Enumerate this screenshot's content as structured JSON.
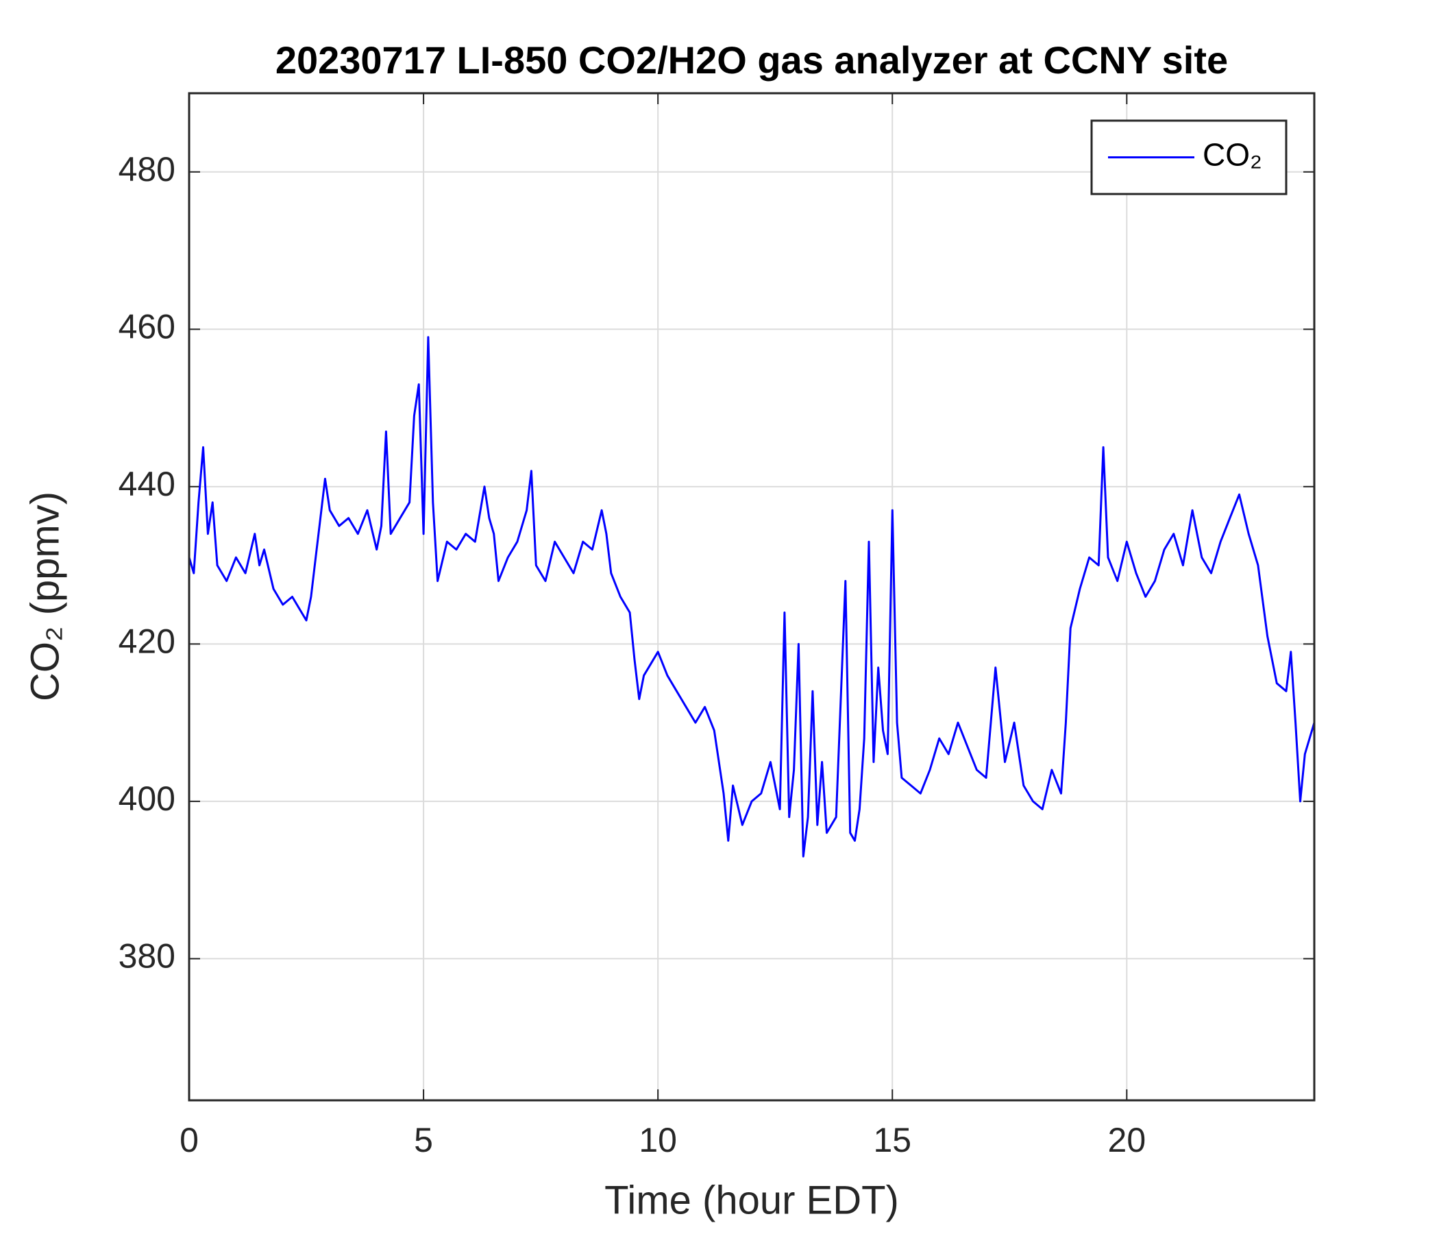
{
  "chart_data": {
    "type": "line",
    "title": "20230717 LI-850 CO2/H2O gas analyzer at CCNY site",
    "x_label": "Time (hour EDT)",
    "y_label": "CO₂ (ppmv)",
    "xlim": [
      0,
      24
    ],
    "xticks": [
      0,
      5,
      10,
      15,
      20
    ],
    "ylim": [
      362,
      490
    ],
    "yticks": [
      380,
      400,
      420,
      440,
      460,
      480
    ],
    "grid": true,
    "legend": "upper right",
    "x": [
      0,
      0.1,
      0.2,
      0.3,
      0.4,
      0.5,
      0.6,
      0.8,
      1.0,
      1.2,
      1.4,
      1.5,
      1.6,
      1.8,
      2.0,
      2.2,
      2.4,
      2.5,
      2.6,
      2.7,
      2.8,
      2.9,
      3.0,
      3.2,
      3.4,
      3.6,
      3.8,
      4.0,
      4.1,
      4.2,
      4.3,
      4.5,
      4.7,
      4.8,
      4.9,
      5.0,
      5.1,
      5.2,
      5.3,
      5.5,
      5.7,
      5.9,
      6.1,
      6.3,
      6.4,
      6.5,
      6.6,
      6.8,
      7.0,
      7.2,
      7.3,
      7.4,
      7.6,
      7.8,
      8.0,
      8.2,
      8.4,
      8.6,
      8.8,
      8.9,
      9.0,
      9.2,
      9.4,
      9.5,
      9.6,
      9.7,
      9.8,
      10.0,
      10.2,
      10.4,
      10.6,
      10.8,
      11.0,
      11.2,
      11.4,
      11.5,
      11.6,
      11.8,
      12.0,
      12.2,
      12.4,
      12.6,
      12.7,
      12.8,
      12.9,
      13.0,
      13.1,
      13.2,
      13.3,
      13.4,
      13.5,
      13.6,
      13.8,
      14.0,
      14.1,
      14.2,
      14.3,
      14.4,
      14.5,
      14.6,
      14.7,
      14.8,
      14.9,
      15.0,
      15.1,
      15.2,
      15.4,
      15.6,
      15.8,
      16.0,
      16.2,
      16.4,
      16.6,
      16.8,
      17.0,
      17.2,
      17.4,
      17.6,
      17.8,
      18.0,
      18.2,
      18.4,
      18.6,
      18.7,
      18.8,
      19.0,
      19.2,
      19.4,
      19.5,
      19.6,
      19.8,
      20.0,
      20.2,
      20.4,
      20.6,
      20.8,
      21.0,
      21.2,
      21.4,
      21.6,
      21.8,
      22.0,
      22.2,
      22.4,
      22.6,
      22.8,
      23.0,
      23.2,
      23.4,
      23.5,
      23.6,
      23.7,
      23.8,
      24.0
    ],
    "series": [
      {
        "name": "CO₂",
        "color": "#0000ff",
        "values": [
          431,
          429,
          438,
          445,
          434,
          438,
          430,
          428,
          431,
          429,
          434,
          430,
          432,
          427,
          425,
          426,
          424,
          423,
          426,
          431,
          436,
          441,
          437,
          435,
          436,
          434,
          437,
          432,
          435,
          447,
          434,
          436,
          438,
          449,
          453,
          434,
          459,
          438,
          428,
          433,
          432,
          434,
          433,
          440,
          436,
          434,
          428,
          431,
          433,
          437,
          442,
          430,
          428,
          433,
          431,
          429,
          433,
          432,
          437,
          434,
          429,
          426,
          424,
          418,
          413,
          416,
          417,
          419,
          416,
          414,
          412,
          410,
          412,
          409,
          401,
          395,
          402,
          397,
          400,
          401,
          405,
          399,
          424,
          398,
          404,
          420,
          393,
          398,
          414,
          397,
          405,
          396,
          398,
          428,
          396,
          395,
          399,
          408,
          433,
          405,
          417,
          409,
          406,
          437,
          410,
          403,
          402,
          401,
          404,
          408,
          406,
          410,
          407,
          404,
          403,
          417,
          405,
          410,
          402,
          400,
          399,
          404,
          401,
          410,
          422,
          427,
          431,
          430,
          445,
          431,
          428,
          433,
          429,
          426,
          428,
          432,
          434,
          430,
          437,
          431,
          429,
          433,
          436,
          439,
          434,
          430,
          421,
          415,
          414,
          419,
          410,
          400,
          406,
          410
        ]
      }
    ]
  }
}
